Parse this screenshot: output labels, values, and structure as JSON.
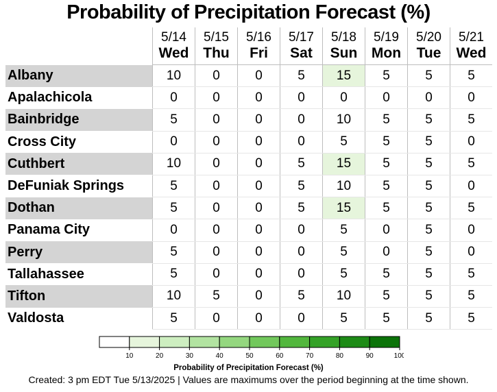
{
  "chart_data": {
    "type": "table",
    "title": "Probability of Precipitation Forecast (%)",
    "columns": [
      {
        "date": "5/14",
        "day": "Wed"
      },
      {
        "date": "5/15",
        "day": "Thu"
      },
      {
        "date": "5/16",
        "day": "Fri"
      },
      {
        "date": "5/17",
        "day": "Sat"
      },
      {
        "date": "5/18",
        "day": "Sun"
      },
      {
        "date": "5/19",
        "day": "Mon"
      },
      {
        "date": "5/20",
        "day": "Tue"
      },
      {
        "date": "5/21",
        "day": "Wed"
      }
    ],
    "rows": [
      {
        "name": "Albany",
        "values": [
          10,
          0,
          0,
          5,
          15,
          5,
          5,
          5
        ]
      },
      {
        "name": "Apalachicola",
        "values": [
          0,
          0,
          0,
          0,
          0,
          0,
          0,
          0
        ]
      },
      {
        "name": "Bainbridge",
        "values": [
          5,
          0,
          0,
          0,
          10,
          5,
          5,
          5
        ]
      },
      {
        "name": "Cross City",
        "values": [
          0,
          0,
          0,
          0,
          5,
          5,
          5,
          0
        ]
      },
      {
        "name": "Cuthbert",
        "values": [
          10,
          0,
          0,
          5,
          15,
          5,
          5,
          5
        ]
      },
      {
        "name": "DeFuniak Springs",
        "values": [
          5,
          0,
          0,
          5,
          10,
          5,
          5,
          0
        ]
      },
      {
        "name": "Dothan",
        "values": [
          5,
          0,
          0,
          5,
          15,
          5,
          5,
          5
        ]
      },
      {
        "name": "Panama City",
        "values": [
          0,
          0,
          0,
          0,
          5,
          0,
          5,
          0
        ]
      },
      {
        "name": "Perry",
        "values": [
          5,
          0,
          0,
          0,
          5,
          0,
          5,
          0
        ]
      },
      {
        "name": "Tallahassee",
        "values": [
          5,
          0,
          0,
          0,
          5,
          5,
          5,
          5
        ]
      },
      {
        "name": "Tifton",
        "values": [
          10,
          5,
          0,
          5,
          10,
          5,
          5,
          5
        ]
      },
      {
        "name": "Valdosta",
        "values": [
          5,
          0,
          0,
          0,
          5,
          5,
          5,
          5
        ]
      }
    ],
    "color_scale": {
      "ticks": [
        10,
        20,
        30,
        40,
        50,
        60,
        70,
        80,
        90,
        100
      ],
      "colors": [
        "#ffffff",
        "#e6f5dc",
        "#cdeec0",
        "#b2e3a1",
        "#94d77f",
        "#72c85c",
        "#52b73d",
        "#34a227",
        "#1d8b16",
        "#0b7309"
      ],
      "label": "Probability of Precipitation Forecast (%)"
    }
  },
  "footer": "Created: 3 pm EDT Tue 5/13/2025  |  Values are maximums over the period beginning at the time shown."
}
